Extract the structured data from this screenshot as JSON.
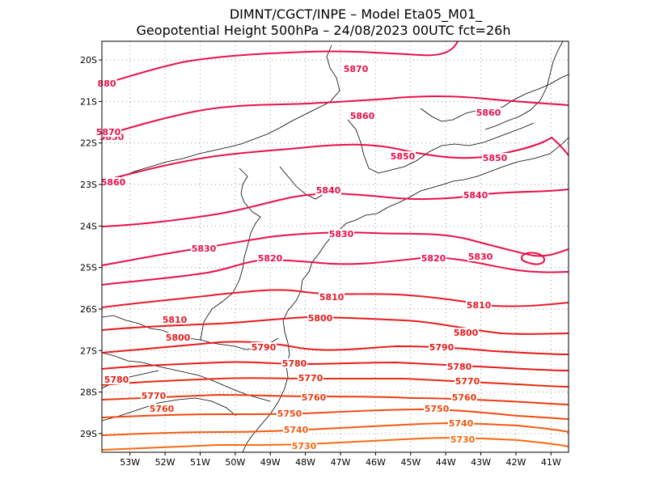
{
  "title": {
    "line1": "DIMNT/CGCT/INPE –  Model Eta05_M01_",
    "line2": "Geopotential Height 500hPa –  24/08/2023 00UTC fct=26h"
  },
  "map": {
    "lon_range": [
      -53.8,
      -40.5
    ],
    "lat_range": [
      -29.45,
      -19.55
    ],
    "x_ticks": [
      "53W",
      "52W",
      "51W",
      "50W",
      "49W",
      "48W",
      "47W",
      "46W",
      "45W",
      "44W",
      "43W",
      "42W",
      "41W"
    ],
    "y_ticks": [
      "20S",
      "21S",
      "22S",
      "23S",
      "24S",
      "25S",
      "26S",
      "27S",
      "28S",
      "29S"
    ],
    "grid": "dotted",
    "contour_levels": [
      5870,
      5860,
      5850,
      5840,
      5830,
      5820,
      5810,
      5800,
      5790,
      5780,
      5770,
      5760,
      5750,
      5740,
      5730
    ],
    "contour_colors": {
      "5870": "#e8104a",
      "5860": "#e8104a",
      "5850": "#e8104a",
      "5840": "#e8104a",
      "5830": "#e8104a",
      "5820": "#e8104a",
      "5810": "#e81a2a",
      "5800": "#e81a1a",
      "5790": "#e81a1a",
      "5780": "#e81a1a",
      "5770": "#e82a10",
      "5760": "#ec3a10",
      "5750": "#f04a10",
      "5740": "#f45a10",
      "5730": "#f86a10"
    },
    "contour_labels": [
      "5870",
      "5860",
      "5860",
      "5850",
      "5850",
      "5850",
      "5840",
      "5840",
      "5830",
      "5830",
      "5830",
      "5820",
      "5820",
      "5810",
      "5810",
      "5810",
      "5800",
      "5800",
      "5800",
      "5790",
      "5790",
      "5780",
      "5780",
      "5780",
      "5770",
      "5770",
      "5770",
      "5760",
      "5760",
      "5760",
      "5750",
      "5750",
      "5740",
      "5740",
      "5730",
      "5730",
      "880",
      "5870",
      "5860"
    ]
  }
}
